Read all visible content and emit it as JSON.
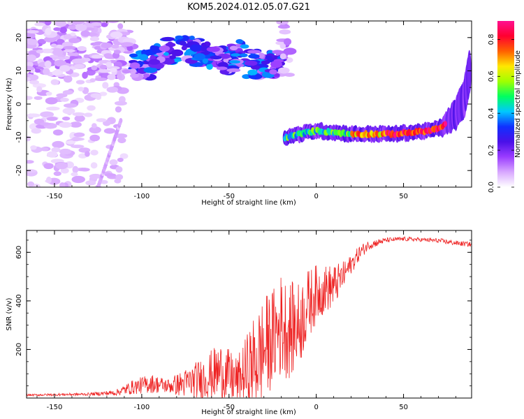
{
  "title": "KOM5.2024.012.05.07.G21",
  "chart_data": [
    {
      "type": "heatmap",
      "panel": "spectrogram",
      "xlabel": "Height of straight line (km)",
      "ylabel": "Frequency (Hz)",
      "xlim": [
        -166,
        89
      ],
      "ylim": [
        -25,
        25
      ],
      "xticks": [
        -150,
        -100,
        -50,
        0,
        50
      ],
      "yticks": [
        -20,
        -10,
        0,
        10,
        20
      ],
      "xtick_labels": [
        "-150",
        "-100",
        "-50",
        "0",
        "50"
      ],
      "ytick_labels": [
        "-20",
        "-10",
        "0",
        "10",
        "20"
      ],
      "colorbar": {
        "label": "Normalized spectral amplitude",
        "range": [
          0,
          0.9
        ],
        "ticks": [
          0.0,
          0.2,
          0.4,
          0.6,
          0.8
        ],
        "tick_labels": [
          "0.0",
          "0.2",
          "0.4",
          "0.6",
          "0.8"
        ],
        "colormap": [
          "#ffffff",
          "#d8a8ff",
          "#9b3dff",
          "#4a10e8",
          "#1030ff",
          "#00c8ff",
          "#00ff60",
          "#a0ff00",
          "#ffe800",
          "#ff6000",
          "#ff0030",
          "#ff1090"
        ]
      },
      "features": [
        {
          "name": "Upper noise band",
          "x_range": [
            -166,
            -15
          ],
          "freq_range": [
            8,
            25
          ],
          "peak_amplitude": 0.4
        },
        {
          "name": "Background speckle",
          "x_range": [
            -166,
            -110
          ],
          "freq_range": [
            -25,
            25
          ],
          "peak_amplitude": 0.1
        },
        {
          "name": "Main signal trace",
          "x_range": [
            -18,
            88
          ],
          "freq_points": [
            [
              -18,
              -10
            ],
            [
              0,
              -8
            ],
            [
              20,
              -9
            ],
            [
              45,
              -9
            ],
            [
              65,
              -8
            ],
            [
              72,
              -7
            ],
            [
              80,
              -3
            ],
            [
              85,
              2
            ],
            [
              88,
              10
            ]
          ],
          "peak_amplitude": 0.9
        },
        {
          "name": "Inclined line",
          "x_range": [
            -125,
            -112
          ],
          "freq_range": [
            -25,
            -5
          ],
          "peak_amplitude": 0.1
        }
      ]
    },
    {
      "type": "line",
      "panel": "snr",
      "xlabel": "Height of straight line (km)",
      "ylabel": "SNR (v/v)",
      "xlim": [
        -166,
        89
      ],
      "ylim": [
        0,
        690
      ],
      "xticks": [
        -150,
        -100,
        -50,
        0,
        50
      ],
      "yticks": [
        200,
        400,
        600
      ],
      "xtick_labels": [
        "-150",
        "-100",
        "-50",
        "0",
        "50"
      ],
      "ytick_labels": [
        "200",
        "400",
        "600"
      ],
      "series": [
        {
          "color": "#ee2222",
          "x": [
            -166,
            -150,
            -130,
            -115,
            -105,
            -95,
            -85,
            -75,
            -65,
            -55,
            -45,
            -35,
            -30,
            -25,
            -20,
            -15,
            -10,
            -5,
            0,
            5,
            10,
            15,
            20,
            25,
            30,
            40,
            50,
            60,
            70,
            80,
            89
          ],
          "y": [
            12,
            14,
            16,
            22,
            45,
            60,
            50,
            60,
            80,
            110,
            70,
            150,
            200,
            250,
            300,
            280,
            300,
            380,
            430,
            450,
            460,
            500,
            550,
            600,
            630,
            650,
            655,
            652,
            648,
            638,
            632
          ],
          "noise": [
            4,
            5,
            6,
            12,
            30,
            40,
            30,
            60,
            90,
            120,
            100,
            200,
            220,
            200,
            220,
            200,
            180,
            150,
            120,
            100,
            90,
            60,
            40,
            30,
            20,
            10,
            9,
            8,
            10,
            10,
            10
          ]
        }
      ]
    }
  ]
}
